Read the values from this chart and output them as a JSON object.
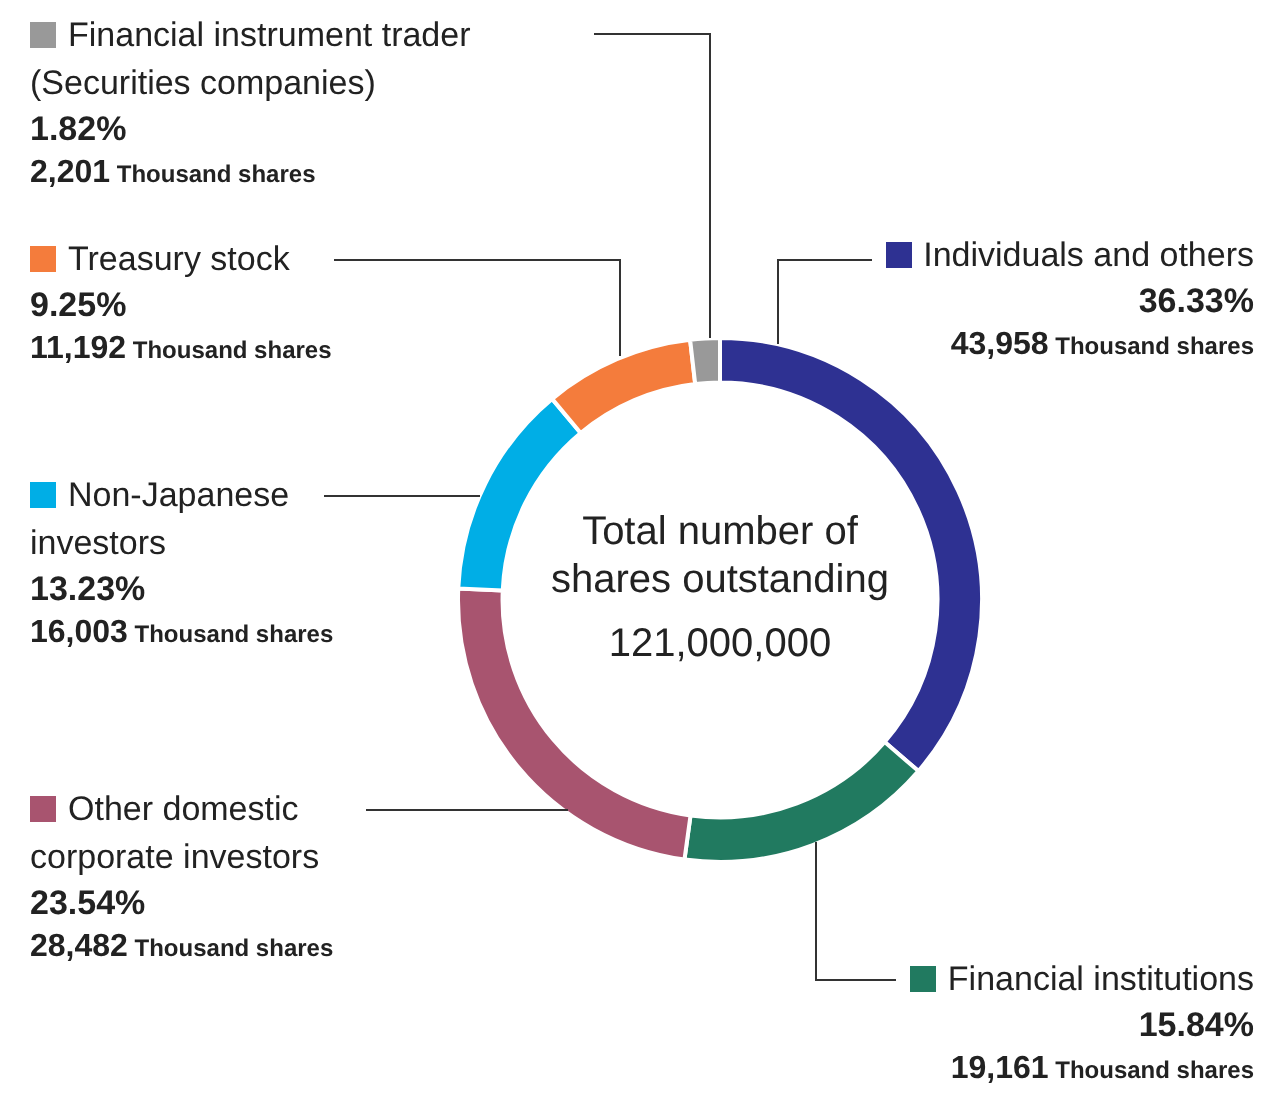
{
  "chart_data": {
    "type": "donut",
    "categories": [
      "Individuals and others",
      "Financial institutions",
      "Other domestic corporate investors",
      "Non-Japanese investors",
      "Treasury stock",
      "Financial instrument trader (Securities companies)"
    ],
    "values": [
      36.33,
      15.84,
      23.54,
      13.23,
      9.25,
      1.82
    ],
    "colors": [
      "#2e3192",
      "#217a60",
      "#a8546f",
      "#00aee6",
      "#f47c3c",
      "#999999"
    ],
    "value_labels": [
      "36.33%\n43,958 Thousand shares",
      "15.84%\n19,161 Thousand shares",
      "23.54%\n28,482 Thousand shares",
      "13.23%\n16,003 Thousand shares",
      "9.25%\n11,192 Thousand shares",
      "1.82%\n2,201 Thousand shares"
    ],
    "legend": "left",
    "annotations": [
      "Total number of shares outstanding",
      "121,000,000"
    ]
  }
}
